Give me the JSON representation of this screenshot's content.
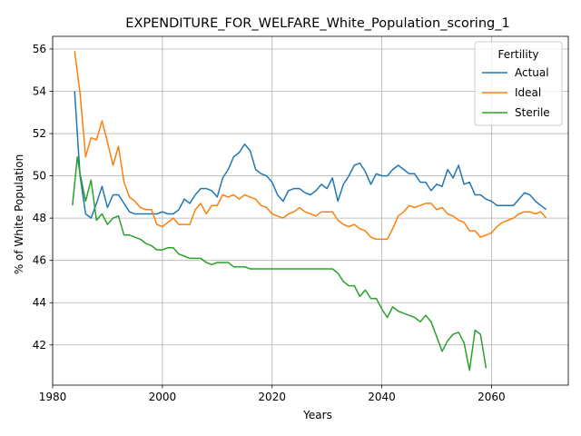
{
  "chart_data": {
    "type": "line",
    "title": "EXPENDITURE_FOR_WELFARE_White_Population_scoring_1",
    "xlabel": "Years",
    "ylabel": "% of White Population",
    "xlim": [
      1980,
      2074
    ],
    "ylim": [
      40.1,
      56.6
    ],
    "xticks": [
      1980,
      2000,
      2020,
      2040,
      2060
    ],
    "yticks": [
      42,
      44,
      46,
      48,
      50,
      52,
      54,
      56
    ],
    "grid": true,
    "legend": {
      "title": "Fertility",
      "placement": "top-right"
    },
    "colors": {
      "Actual": "#1f77b4",
      "Ideal": "#ff7f0e",
      "Sterile": "#2ca02c"
    },
    "series": [
      {
        "name": "Actual",
        "x": [
          1984,
          1985,
          1986,
          1987,
          1988,
          1989,
          1990,
          1991,
          1992,
          1993,
          1994,
          1995,
          1996,
          1997,
          1998,
          1999,
          2000,
          2001,
          2002,
          2003,
          2004,
          2005,
          2006,
          2007,
          2008,
          2009,
          2010,
          2011,
          2012,
          2013,
          2014,
          2015,
          2016,
          2017,
          2018,
          2019,
          2020,
          2021,
          2022,
          2023,
          2024,
          2025,
          2026,
          2027,
          2028,
          2029,
          2030,
          2031,
          2032,
          2033,
          2034,
          2035,
          2036,
          2037,
          2038,
          2039,
          2040,
          2041,
          2042,
          2043,
          2044,
          2045,
          2046,
          2047,
          2048,
          2049,
          2050,
          2051,
          2052,
          2053,
          2054,
          2055,
          2056,
          2057,
          2058,
          2059,
          2060,
          2061,
          2062,
          2063,
          2064,
          2065,
          2066,
          2067,
          2068,
          2069,
          2070
        ],
        "y": [
          54.0,
          50.0,
          48.2,
          48.0,
          48.7,
          49.5,
          48.5,
          49.1,
          49.1,
          48.7,
          48.3,
          48.2,
          48.2,
          48.2,
          48.2,
          48.2,
          48.3,
          48.2,
          48.2,
          48.4,
          48.9,
          48.7,
          49.1,
          49.4,
          49.4,
          49.3,
          49.0,
          49.9,
          50.3,
          50.9,
          51.1,
          51.5,
          51.2,
          50.3,
          50.1,
          50.0,
          49.7,
          49.1,
          48.8,
          49.3,
          49.4,
          49.4,
          49.2,
          49.1,
          49.3,
          49.6,
          49.4,
          49.9,
          48.8,
          49.6,
          50.0,
          50.5,
          50.6,
          50.2,
          49.6,
          50.1,
          50.0,
          50.0,
          50.3,
          50.5,
          50.3,
          50.1,
          50.1,
          49.7,
          49.7,
          49.3,
          49.6,
          49.5,
          50.3,
          49.9,
          50.5,
          49.6,
          49.7,
          49.1,
          49.1,
          48.9,
          48.8,
          48.6,
          48.6,
          48.6,
          48.6,
          48.9,
          49.2,
          49.1,
          48.8,
          48.6,
          48.4
        ]
      },
      {
        "name": "Ideal",
        "x": [
          1984,
          1985,
          1986,
          1987,
          1988,
          1989,
          1990,
          1991,
          1992,
          1993,
          1994,
          1995,
          1996,
          1997,
          1998,
          1999,
          2000,
          2001,
          2002,
          2003,
          2004,
          2005,
          2006,
          2007,
          2008,
          2009,
          2010,
          2011,
          2012,
          2013,
          2014,
          2015,
          2016,
          2017,
          2018,
          2019,
          2020,
          2021,
          2022,
          2023,
          2024,
          2025,
          2026,
          2027,
          2028,
          2029,
          2030,
          2031,
          2032,
          2033,
          2034,
          2035,
          2036,
          2037,
          2038,
          2039,
          2040,
          2041,
          2042,
          2043,
          2044,
          2045,
          2046,
          2047,
          2048,
          2049,
          2050,
          2051,
          2052,
          2053,
          2054,
          2055,
          2056,
          2057,
          2058,
          2059,
          2060,
          2061,
          2062,
          2063,
          2064,
          2065,
          2066,
          2067,
          2068,
          2069,
          2070
        ],
        "y": [
          55.9,
          53.9,
          50.9,
          51.8,
          51.7,
          52.6,
          51.6,
          50.5,
          51.4,
          49.7,
          49.0,
          48.8,
          48.5,
          48.4,
          48.4,
          47.7,
          47.6,
          47.8,
          48.0,
          47.7,
          47.7,
          47.7,
          48.4,
          48.7,
          48.2,
          48.6,
          48.6,
          49.1,
          49.0,
          49.1,
          48.9,
          49.1,
          49.0,
          48.9,
          48.6,
          48.5,
          48.2,
          48.1,
          48.0,
          48.2,
          48.3,
          48.5,
          48.3,
          48.2,
          48.1,
          48.3,
          48.3,
          48.3,
          47.9,
          47.7,
          47.6,
          47.7,
          47.5,
          47.4,
          47.1,
          47.0,
          47.0,
          47.0,
          47.5,
          48.1,
          48.3,
          48.6,
          48.5,
          48.6,
          48.7,
          48.7,
          48.4,
          48.5,
          48.2,
          48.1,
          47.9,
          47.8,
          47.4,
          47.4,
          47.1,
          47.2,
          47.3,
          47.6,
          47.8,
          47.9,
          48.0,
          48.2,
          48.3,
          48.3,
          48.2,
          48.3,
          48.0
        ]
      },
      {
        "name": "Sterile",
        "x": [
          1983.6,
          1984.5,
          1985,
          1986,
          1987,
          1988,
          1989,
          1990,
          1991,
          1992,
          1993,
          1994,
          1995,
          1996,
          1997,
          1998,
          1999,
          2000,
          2001,
          2002,
          2003,
          2004,
          2005,
          2006,
          2007,
          2008,
          2009,
          2010,
          2011,
          2012,
          2013,
          2014,
          2015,
          2016,
          2017,
          2018,
          2019,
          2020,
          2021,
          2022,
          2023,
          2024,
          2025,
          2026,
          2027,
          2028,
          2029,
          2030,
          2031,
          2032,
          2033,
          2034,
          2035,
          2036,
          2037,
          2038,
          2039,
          2040,
          2041,
          2042,
          2043,
          2044,
          2045,
          2046,
          2047,
          2048,
          2049,
          2050,
          2051,
          2052,
          2053,
          2054,
          2055,
          2056,
          2057,
          2058,
          2059
        ],
        "y": [
          48.6,
          50.9,
          50.1,
          48.8,
          49.8,
          47.9,
          48.2,
          47.7,
          48.0,
          48.1,
          47.2,
          47.2,
          47.1,
          47.0,
          46.8,
          46.7,
          46.5,
          46.5,
          46.6,
          46.6,
          46.3,
          46.2,
          46.1,
          46.1,
          46.1,
          45.9,
          45.8,
          45.9,
          45.9,
          45.9,
          45.7,
          45.7,
          45.7,
          45.6,
          45.6,
          45.6,
          45.6,
          45.6,
          45.6,
          45.6,
          45.6,
          45.6,
          45.6,
          45.6,
          45.6,
          45.6,
          45.6,
          45.6,
          45.6,
          45.4,
          45.0,
          44.8,
          44.8,
          44.3,
          44.6,
          44.2,
          44.2,
          43.7,
          43.3,
          43.8,
          43.6,
          43.5,
          43.4,
          43.3,
          43.1,
          43.4,
          43.1,
          42.4,
          41.7,
          42.2,
          42.5,
          42.6,
          42.1,
          40.8,
          42.7,
          42.5,
          40.9
        ]
      }
    ]
  }
}
